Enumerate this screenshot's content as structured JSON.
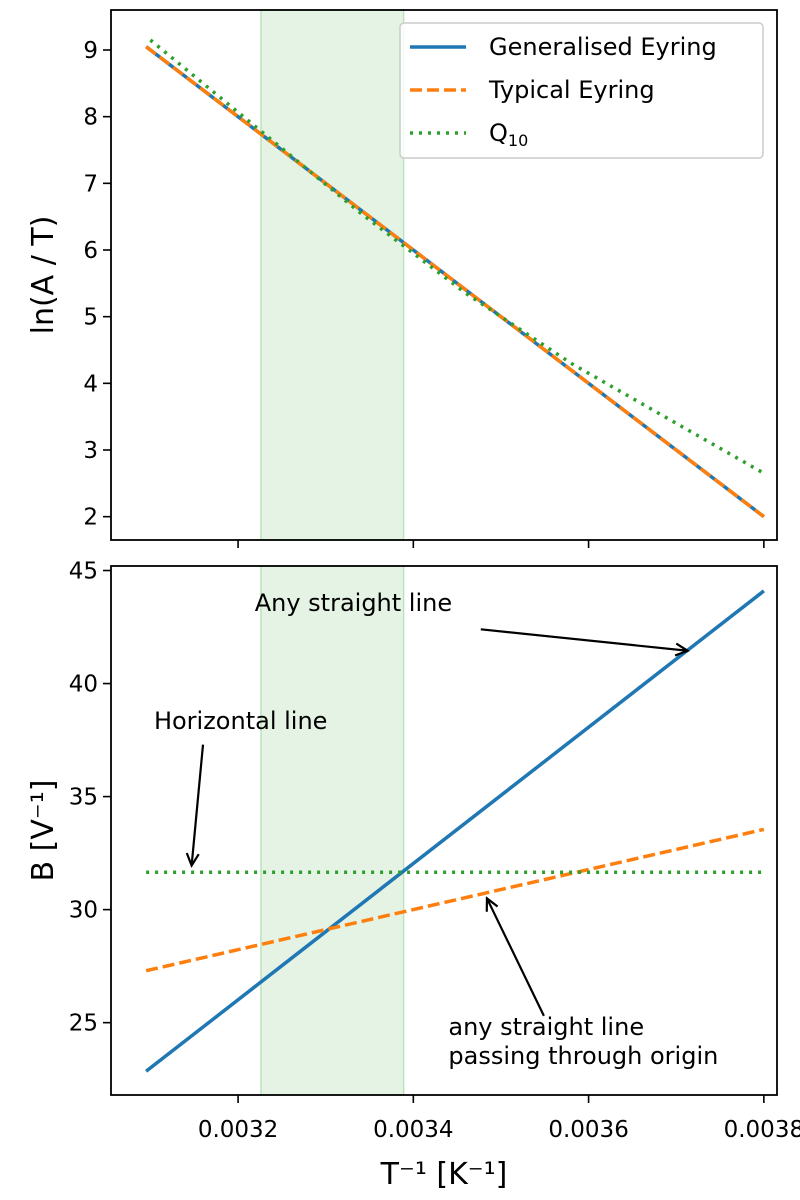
{
  "colors": {
    "generalised": "#1f77b4",
    "typical": "#ff7f0e",
    "q10": "#2ca02c",
    "band": "#2ca02c"
  },
  "chart_data": [
    {
      "type": "line",
      "ylabel": "ln(A / T)",
      "xlabel": "",
      "xlim": [
        0.003055,
        0.003815
      ],
      "ylim": [
        1.65,
        9.6
      ],
      "yticks": [
        2,
        3,
        4,
        5,
        6,
        7,
        8,
        9
      ],
      "xticks": [
        0.0032,
        0.0034,
        0.0036,
        0.0038
      ],
      "xtick_labels_shown": false,
      "shaded_region": [
        0.003226,
        0.003389
      ],
      "legend": {
        "position": "top-right",
        "entries": [
          {
            "label": "Generalised Eyring",
            "style": "solid"
          },
          {
            "label": "Typical Eyring",
            "style": "dashed"
          },
          {
            "label_main": "Q",
            "label_sub": "10",
            "style": "dotted"
          }
        ]
      },
      "series": [
        {
          "name": "Generalised Eyring",
          "style": "solid",
          "x": [
            0.003095,
            0.0038
          ],
          "y": [
            9.05,
            2.0
          ]
        },
        {
          "name": "Typical Eyring",
          "style": "dashed",
          "x": [
            0.003095,
            0.0038
          ],
          "y": [
            9.05,
            2.0
          ]
        },
        {
          "name": "Q10",
          "style": "dotted",
          "x": [
            0.0031,
            0.00322,
            0.00334,
            0.00346,
            0.00358,
            0.0037,
            0.0038
          ],
          "y": [
            9.15,
            7.85,
            6.55,
            5.35,
            4.3,
            3.4,
            2.65
          ]
        }
      ]
    },
    {
      "type": "line",
      "ylabel": "B [V⁻¹]",
      "xlabel": "T⁻¹ [K⁻¹]",
      "xlim": [
        0.003055,
        0.003815
      ],
      "ylim": [
        21.8,
        45.2
      ],
      "yticks": [
        25,
        30,
        35,
        40,
        45
      ],
      "xticks": [
        0.0032,
        0.0034,
        0.0036,
        0.0038
      ],
      "xtick_labels": [
        "0.0032",
        "0.0034",
        "0.0036",
        "0.0038"
      ],
      "shaded_region": [
        0.003226,
        0.003389
      ],
      "series": [
        {
          "name": "Generalised Eyring",
          "style": "solid",
          "x": [
            0.003095,
            0.0038
          ],
          "y": [
            22.85,
            44.1
          ]
        },
        {
          "name": "Typical Eyring",
          "style": "dashed",
          "x": [
            0.003095,
            0.0038
          ],
          "y": [
            27.3,
            33.55
          ]
        },
        {
          "name": "Q10",
          "style": "dotted",
          "x": [
            0.003095,
            0.0038
          ],
          "y": [
            31.65,
            31.65
          ]
        }
      ],
      "annotations": [
        {
          "lines": [
            "Any straight line"
          ],
          "text_at": [
            0.003219,
            43.2
          ],
          "anchor": "start",
          "arrow_from": [
            0.003477,
            42.4
          ],
          "arrow_to": [
            0.003713,
            41.45
          ]
        },
        {
          "lines": [
            "Horizontal line"
          ],
          "text_at": [
            0.003104,
            38.0
          ],
          "anchor": "start",
          "arrow_from": [
            0.00316,
            37.3
          ],
          "arrow_to": [
            0.003147,
            31.95
          ]
        },
        {
          "lines": [
            "any straight line",
            "passing through origin"
          ],
          "text_at": [
            0.00344,
            24.45
          ],
          "anchor": "start",
          "arrow_from": [
            0.003549,
            25.3
          ],
          "arrow_to": [
            0.003484,
            30.5
          ]
        }
      ]
    }
  ]
}
